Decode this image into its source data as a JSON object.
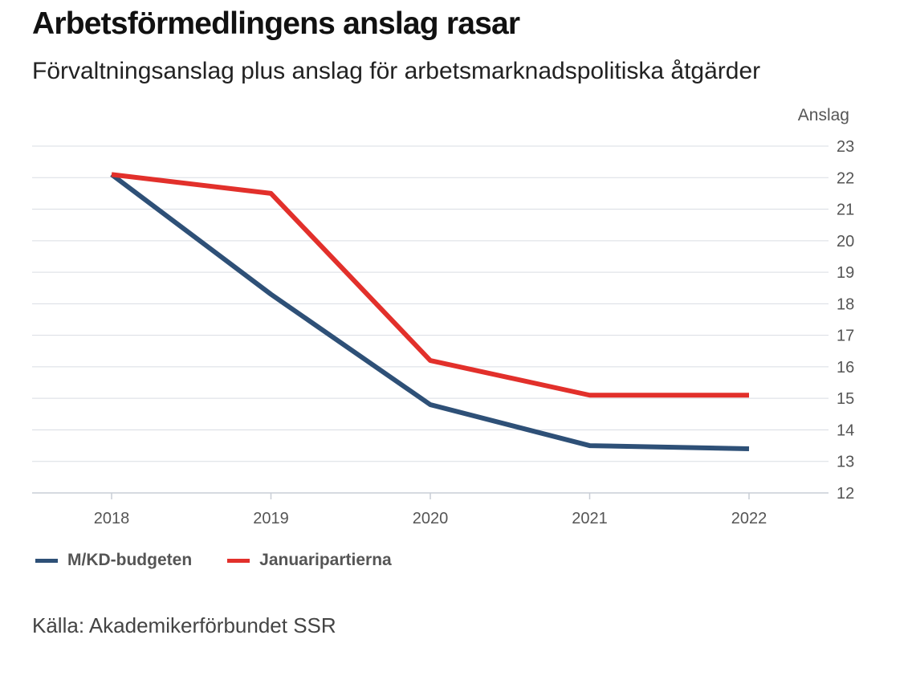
{
  "title": "Arbetsförmedlingens anslag rasar",
  "subtitle": "Förvaltningsanslag plus anslag för arbetsmarknadspolitiska åtgärder",
  "source": "Källa: Akademikerförbundet SSR",
  "chart_data": {
    "type": "line",
    "title": "Arbetsförmedlingens anslag rasar",
    "subtitle": "Förvaltningsanslag plus anslag för arbetsmarknadspolitiska åtgärder",
    "xlabel": "",
    "ylabel": "Anslag",
    "x": [
      "2018",
      "2019",
      "2020",
      "2021",
      "2022"
    ],
    "ylim": [
      12,
      23
    ],
    "yticks": [
      12,
      13,
      14,
      15,
      16,
      17,
      18,
      19,
      20,
      21,
      22,
      23
    ],
    "grid": true,
    "legend_position": "bottom-left",
    "series": [
      {
        "name": "M/KD-budgeten",
        "color": "#2e5077",
        "values": [
          22.1,
          18.3,
          14.8,
          13.5,
          13.4
        ]
      },
      {
        "name": "Januaripartierna",
        "color": "#e2302b",
        "values": [
          22.1,
          21.5,
          16.2,
          15.1,
          15.1
        ]
      }
    ]
  }
}
